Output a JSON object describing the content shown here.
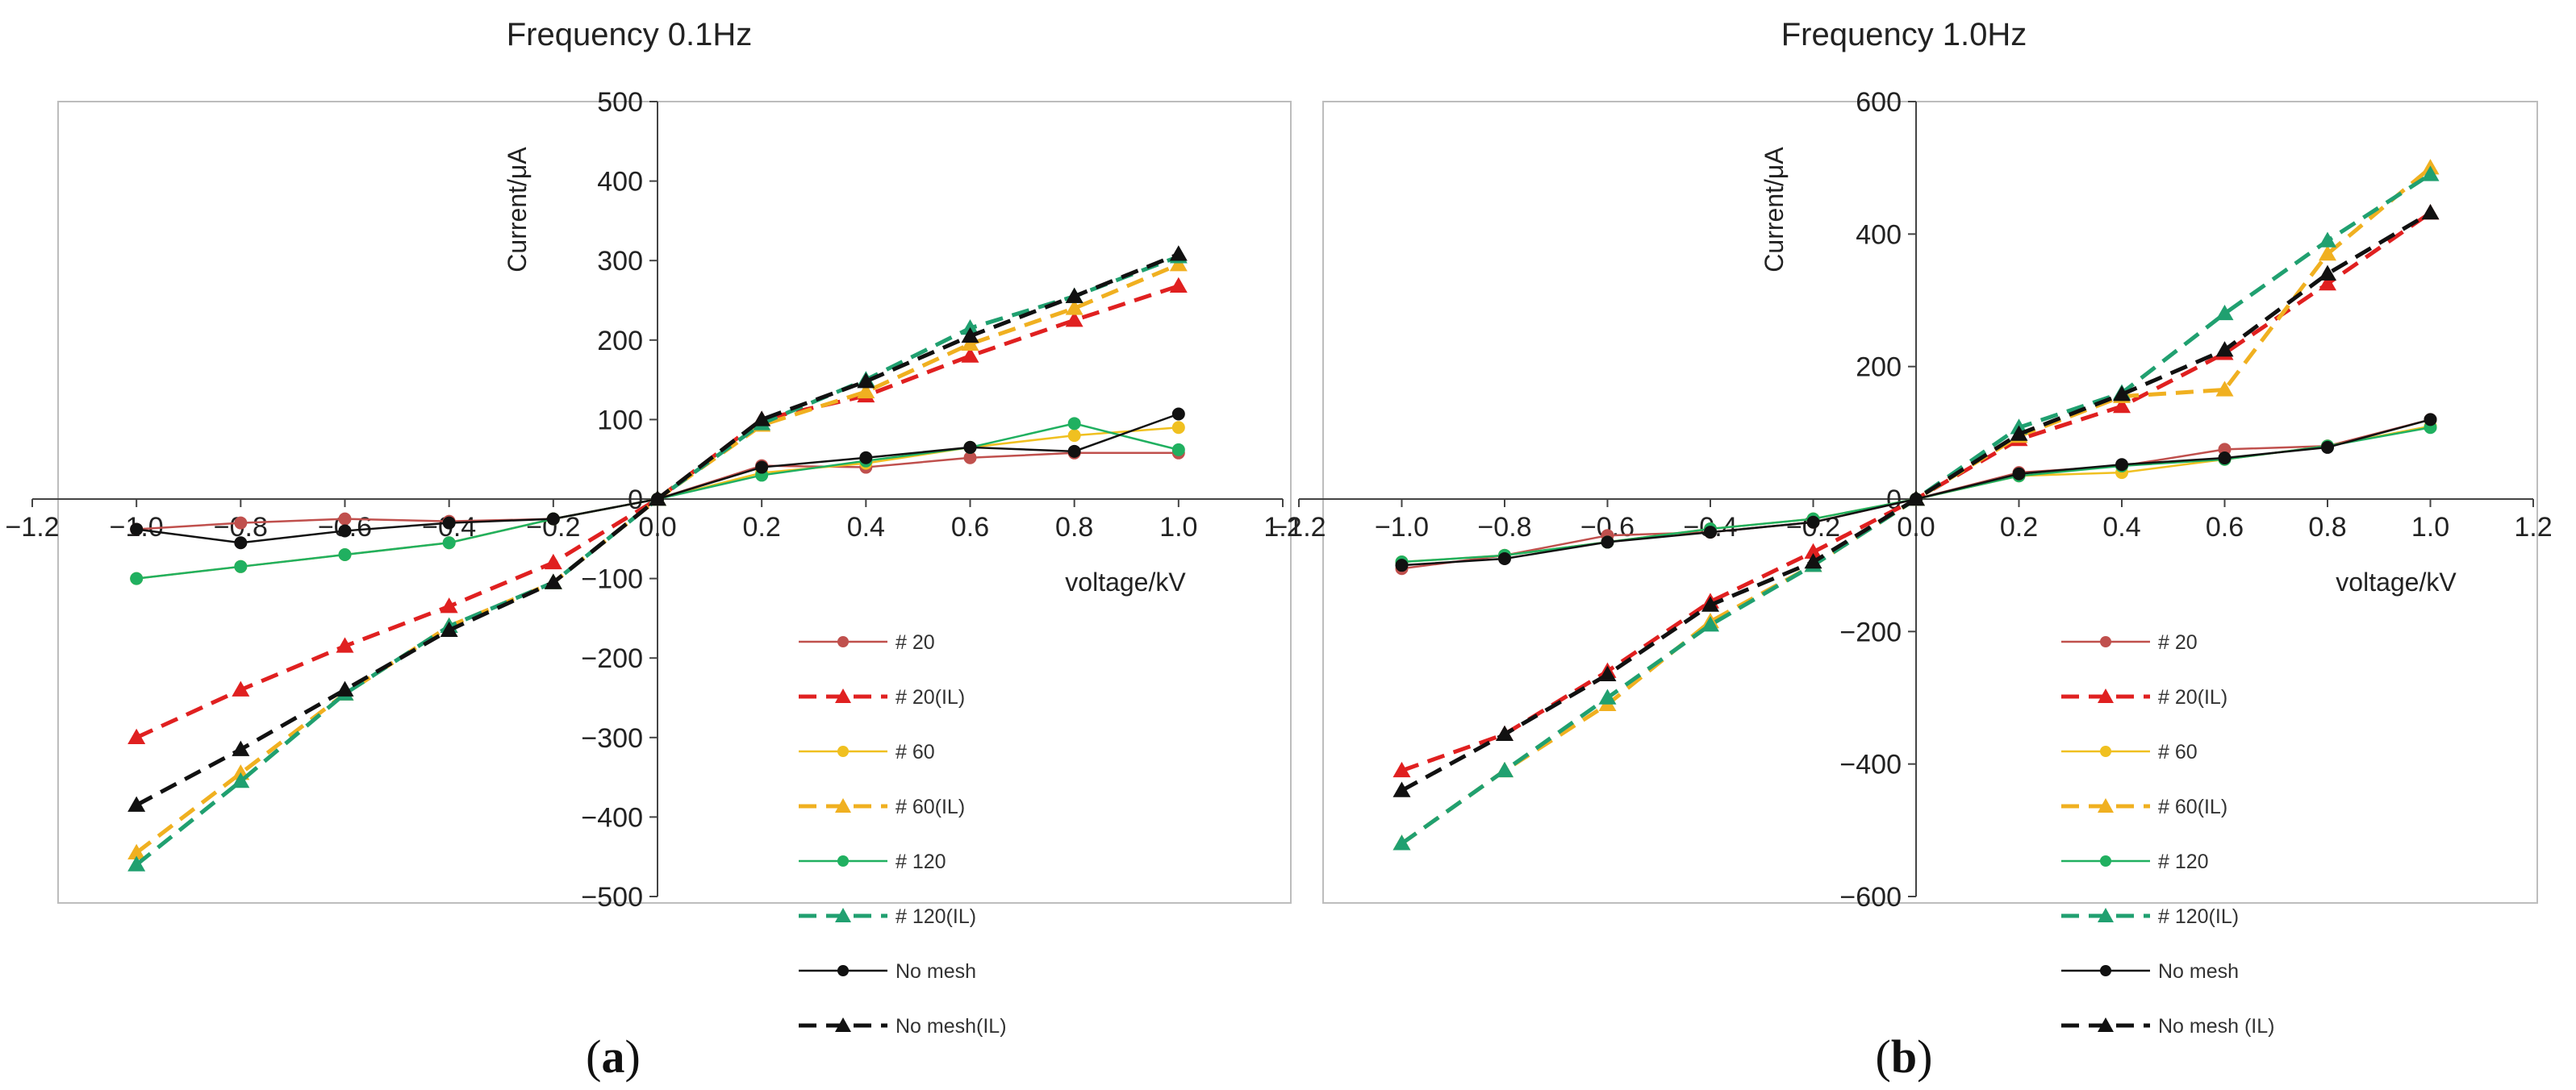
{
  "chart_data": [
    {
      "type": "line",
      "title": "Frequency   0.1Hz",
      "xlabel": "voltage/kV",
      "ylabel": "Current/μA",
      "xlim": [
        -1.2,
        1.2
      ],
      "ylim": [
        -500,
        500
      ],
      "xticks": [
        -1.2,
        -1.0,
        -0.8,
        -0.6,
        -0.4,
        -0.2,
        0.0,
        0.2,
        0.4,
        0.6,
        0.8,
        1.0,
        1.2
      ],
      "yticks": [
        -500,
        -400,
        -300,
        -200,
        -100,
        0,
        100,
        200,
        300,
        400,
        500
      ],
      "xtick_labels": [
        "−1.2",
        "−1.0",
        "−0.8",
        "−0.6",
        "−0.4",
        "−0.2",
        "0.0",
        "0.2",
        "0.4",
        "0.6",
        "0.8",
        "1.0",
        "1.2"
      ],
      "ytick_labels": [
        "−500",
        "−400",
        "−300",
        "−200",
        "−100",
        "0",
        "100",
        "200",
        "300",
        "400",
        "500"
      ],
      "sublabel": "(a)",
      "x": [
        -1.0,
        -0.8,
        -0.6,
        -0.4,
        -0.2,
        0.0,
        0.2,
        0.4,
        0.6,
        0.8,
        1.0
      ],
      "series": [
        {
          "name": "# 20",
          "color": "#c0504d",
          "dash": false,
          "marker": "circle",
          "values": [
            -38,
            -30,
            -25,
            -28,
            -25,
            0,
            42,
            40,
            52,
            58,
            58
          ]
        },
        {
          "name": "# 20(IL)",
          "color": "#e02020",
          "dash": true,
          "marker": "triangle",
          "values": [
            -300,
            -240,
            -185,
            -135,
            -80,
            0,
            100,
            130,
            180,
            225,
            268
          ]
        },
        {
          "name": "# 60",
          "color": "#f0c020",
          "dash": false,
          "marker": "circle",
          "values": [
            -100,
            -85,
            -70,
            -55,
            -25,
            0,
            33,
            45,
            65,
            80,
            90
          ]
        },
        {
          "name": "# 60(IL)",
          "color": "#f0b020",
          "dash": true,
          "marker": "triangle",
          "values": [
            -445,
            -345,
            -245,
            -160,
            -105,
            0,
            93,
            135,
            195,
            240,
            295
          ]
        },
        {
          "name": "# 120",
          "color": "#20b060",
          "dash": false,
          "marker": "circle",
          "values": [
            -100,
            -85,
            -70,
            -55,
            -25,
            0,
            30,
            48,
            65,
            95,
            62
          ]
        },
        {
          "name": "# 120(IL)",
          "color": "#20a070",
          "dash": true,
          "marker": "triangle",
          "values": [
            -460,
            -355,
            -245,
            -160,
            -105,
            0,
            95,
            150,
            215,
            255,
            305
          ]
        },
        {
          "name": "No mesh",
          "color": "#111111",
          "dash": false,
          "marker": "circle",
          "values": [
            -38,
            -55,
            -40,
            -30,
            -25,
            0,
            40,
            52,
            65,
            60,
            107
          ]
        },
        {
          "name": "No mesh(IL)",
          "color": "#111111",
          "dash": true,
          "marker": "triangle",
          "values": [
            -385,
            -315,
            -240,
            -165,
            -105,
            0,
            100,
            148,
            205,
            255,
            308
          ]
        }
      ]
    },
    {
      "type": "line",
      "title": "Frequency   1.0Hz",
      "xlabel": "voltage/kV",
      "ylabel": "Current/μA",
      "xlim": [
        -1.2,
        1.2
      ],
      "ylim": [
        -600,
        600
      ],
      "xticks": [
        -1.2,
        -1.0,
        -0.8,
        -0.6,
        -0.4,
        -0.2,
        0.0,
        0.2,
        0.4,
        0.6,
        0.8,
        1.0,
        1.2
      ],
      "yticks": [
        -600,
        -400,
        -200,
        0,
        200,
        400,
        600
      ],
      "xtick_labels": [
        "−1.2",
        "−1.0",
        "−0.8",
        "−0.6",
        "−0.4",
        "−0.2",
        "0.0",
        "0.2",
        "0.4",
        "0.6",
        "0.8",
        "1.0",
        "1.2"
      ],
      "ytick_labels": [
        "−600",
        "−400",
        "−200",
        "0",
        "200",
        "400",
        "600"
      ],
      "sublabel": "(b)",
      "x": [
        -1.0,
        -0.8,
        -0.6,
        -0.4,
        -0.2,
        0.0,
        0.2,
        0.4,
        0.6,
        0.8,
        1.0
      ],
      "series": [
        {
          "name": "# 20",
          "color": "#c0504d",
          "dash": false,
          "marker": "circle",
          "values": [
            -105,
            -85,
            -55,
            -50,
            -35,
            0,
            40,
            50,
            75,
            80,
            120
          ]
        },
        {
          "name": "# 20(IL)",
          "color": "#e02020",
          "dash": true,
          "marker": "triangle",
          "values": [
            -410,
            -355,
            -260,
            -155,
            -80,
            0,
            90,
            140,
            220,
            325,
            432
          ]
        },
        {
          "name": "# 60",
          "color": "#f0c020",
          "dash": false,
          "marker": "circle",
          "values": [
            -95,
            -85,
            -65,
            -45,
            -30,
            0,
            35,
            40,
            60,
            80,
            110
          ]
        },
        {
          "name": "# 60(IL)",
          "color": "#f0b020",
          "dash": true,
          "marker": "triangle",
          "values": [
            -520,
            -410,
            -310,
            -185,
            -100,
            0,
            95,
            155,
            165,
            370,
            500
          ]
        },
        {
          "name": "# 120",
          "color": "#20b060",
          "dash": false,
          "marker": "circle",
          "values": [
            -95,
            -85,
            -65,
            -45,
            -30,
            0,
            35,
            50,
            60,
            80,
            108
          ]
        },
        {
          "name": "# 120(IL)",
          "color": "#20a070",
          "dash": true,
          "marker": "triangle",
          "values": [
            -520,
            -410,
            -300,
            -190,
            -100,
            0,
            108,
            160,
            280,
            390,
            490
          ]
        },
        {
          "name": "No mesh",
          "color": "#111111",
          "dash": false,
          "marker": "circle",
          "values": [
            -100,
            -90,
            -65,
            -50,
            -35,
            0,
            38,
            52,
            62,
            78,
            120
          ]
        },
        {
          "name": "No mesh (IL)",
          "color": "#111111",
          "dash": true,
          "marker": "triangle",
          "values": [
            -440,
            -355,
            -265,
            -160,
            -95,
            0,
            98,
            158,
            225,
            340,
            432
          ]
        }
      ]
    }
  ]
}
